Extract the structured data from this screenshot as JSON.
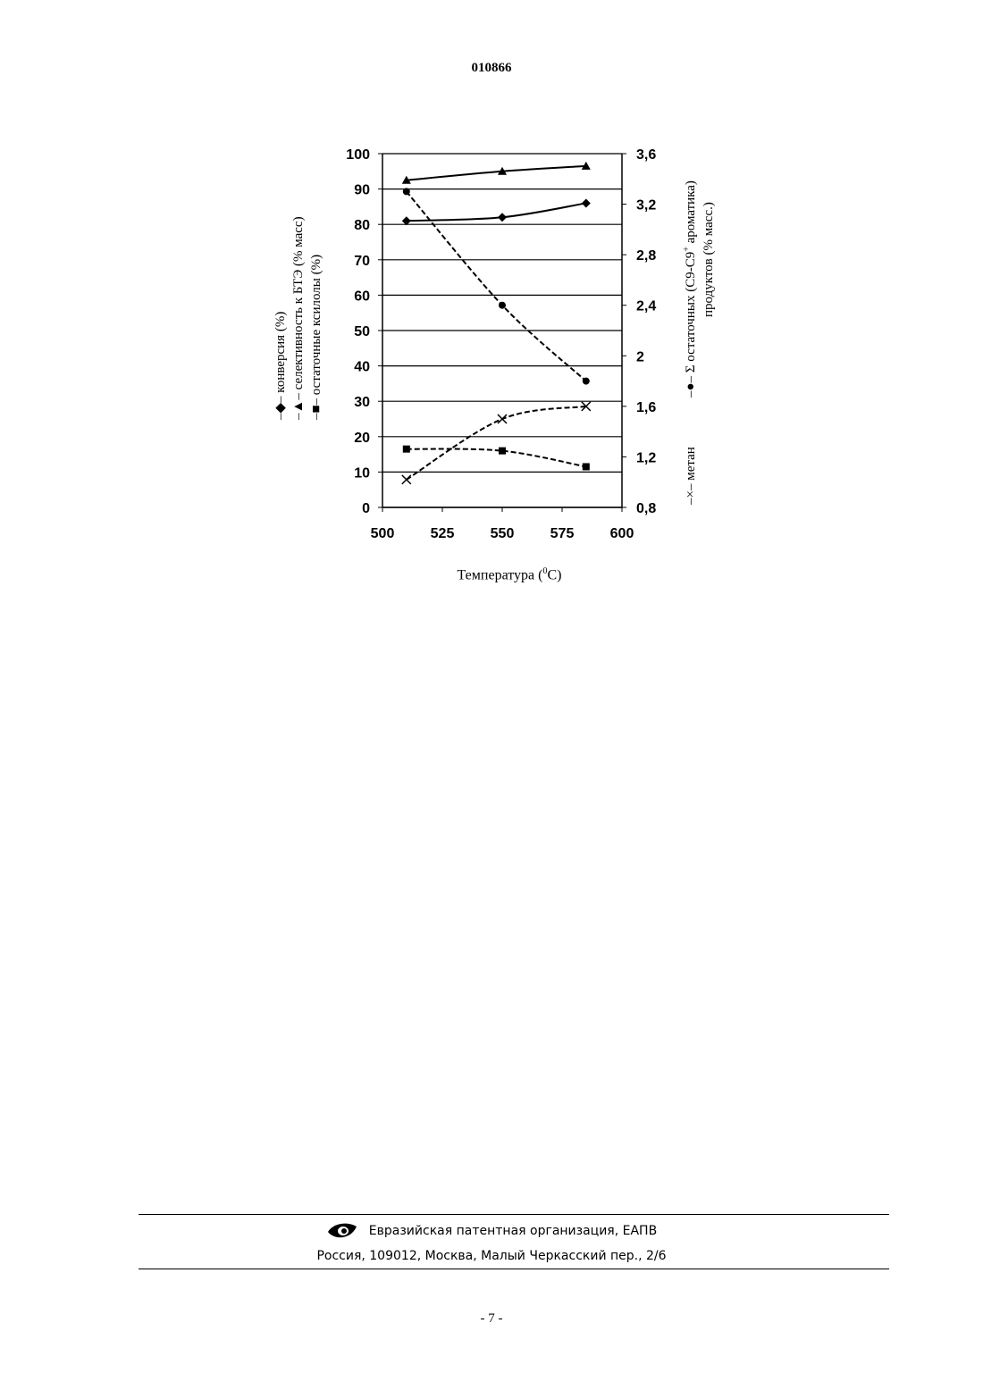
{
  "document": {
    "number": "010866",
    "footer_org": "Евразийская патентная организация, ЕАПВ",
    "footer_address": "Россия, 109012, Москва, Малый Черкасский пер., 2/6",
    "page_number": "- 7 -"
  },
  "chart_data": {
    "type": "line",
    "xlabel_main": "Температура (",
    "xlabel_sup": "0",
    "xlabel_end": "C)",
    "x_ticks": [
      "500",
      "525",
      "550",
      "575",
      "600"
    ],
    "xlim": [
      500,
      600
    ],
    "y_left_ticks": [
      "0",
      "10",
      "20",
      "30",
      "40",
      "50",
      "60",
      "70",
      "80",
      "90",
      "100"
    ],
    "ylim_left": [
      0,
      100
    ],
    "y_right_ticks": [
      "0,8",
      "1,2",
      "1,6",
      "2",
      "2,4",
      "2,8",
      "3,2",
      "3,6"
    ],
    "ylim_right": [
      0.8,
      3.6
    ],
    "grid": true,
    "left_legend": [
      {
        "marker": "◆",
        "text": "конверсия (%)"
      },
      {
        "marker": "▲",
        "text": "селективность к БТЭ (% масс)"
      },
      {
        "marker": "■",
        "text": "остаточные ксилолы (%)"
      }
    ],
    "right_legend": [
      {
        "marker": "●",
        "text_pre": "Σ остаточных (С9-С9",
        "text_sup": "+",
        "text_post": " ароматика)",
        "text_line2": "продуктов (% масс.)"
      },
      {
        "marker": "×",
        "text": "метан"
      }
    ],
    "series": [
      {
        "name": "конверсия (%)",
        "axis": "left",
        "marker": "diamond",
        "dash": "solid",
        "x": [
          510,
          550,
          585
        ],
        "y": [
          81,
          82,
          86
        ]
      },
      {
        "name": "селективность к БТЭ (% масс)",
        "axis": "left",
        "marker": "triangle",
        "dash": "solid",
        "x": [
          510,
          550,
          585
        ],
        "y": [
          92.5,
          95,
          96.5
        ]
      },
      {
        "name": "остаточные ксилолы (%)",
        "axis": "left",
        "marker": "square",
        "dash": "dashed",
        "x": [
          510,
          550,
          585
        ],
        "y": [
          16.5,
          16,
          11.5
        ]
      },
      {
        "name": "Σ остаточных (С9-С9+ ароматика) продуктов (% масс.)",
        "axis": "right",
        "marker": "circle",
        "dash": "dashed",
        "x": [
          510,
          550,
          585
        ],
        "y": [
          3.3,
          2.4,
          1.8
        ]
      },
      {
        "name": "метан",
        "axis": "right",
        "marker": "x",
        "dash": "dashed",
        "x": [
          510,
          550,
          585
        ],
        "y": [
          1.02,
          1.5,
          1.6
        ]
      }
    ]
  }
}
